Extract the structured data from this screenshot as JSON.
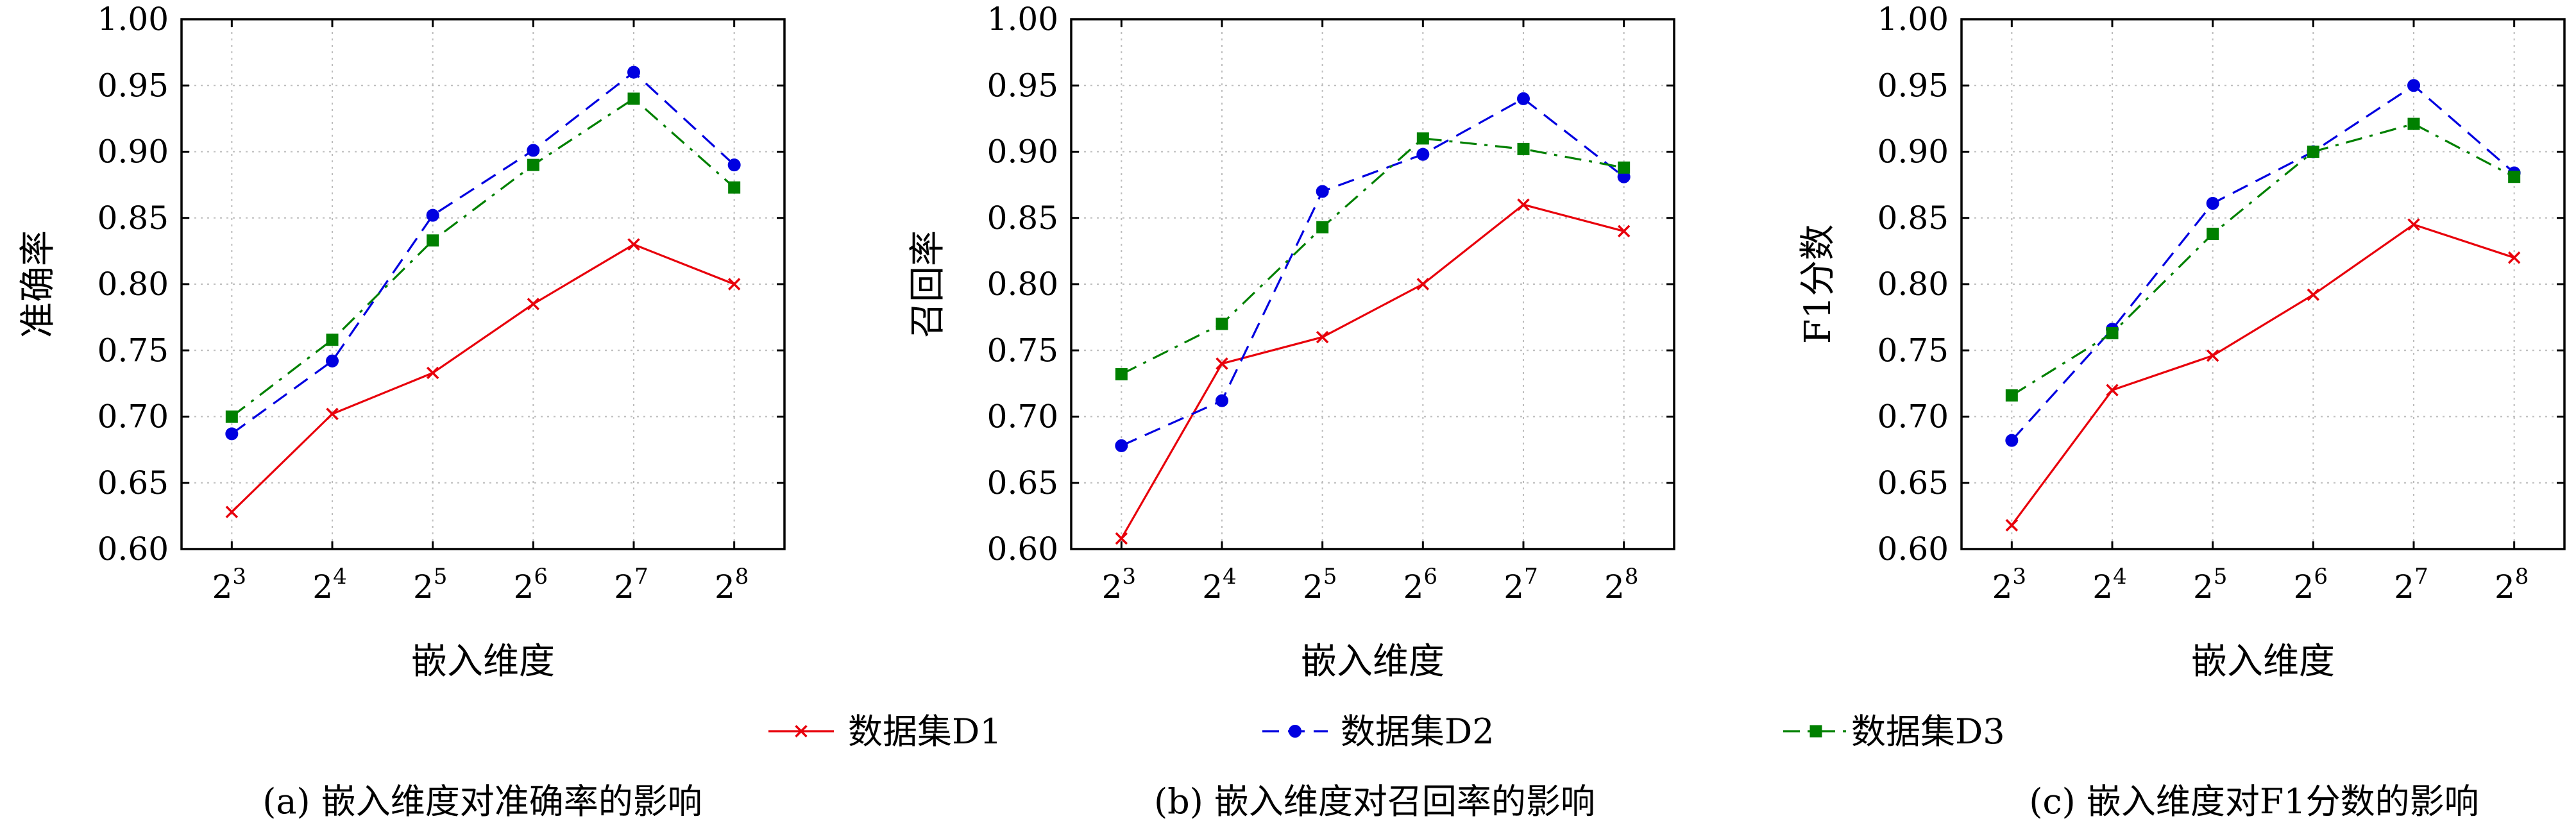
{
  "legend": [
    {
      "name": "数据集D1",
      "color": "#e8000b",
      "marker": "x",
      "dash": "solid"
    },
    {
      "name": "数据集D2",
      "color": "#0000e0",
      "marker": "circle",
      "dash": "dashed"
    },
    {
      "name": "数据集D3",
      "color": "#008000",
      "marker": "square",
      "dash": "dashdot"
    }
  ],
  "chart_data": [
    {
      "type": "line",
      "caption": "(a) 嵌入维度对准确率的影响",
      "xlabel": "嵌入维度",
      "ylabel": "准确率",
      "x": [
        "2^3",
        "2^4",
        "2^5",
        "2^6",
        "2^7",
        "2^8"
      ],
      "x_tick_labels": [
        {
          "base": "2",
          "exp": "3"
        },
        {
          "base": "2",
          "exp": "4"
        },
        {
          "base": "2",
          "exp": "5"
        },
        {
          "base": "2",
          "exp": "6"
        },
        {
          "base": "2",
          "exp": "7"
        },
        {
          "base": "2",
          "exp": "8"
        }
      ],
      "ylim": [
        0.6,
        1.0
      ],
      "y_ticks": [
        "0.60",
        "0.65",
        "0.70",
        "0.75",
        "0.80",
        "0.85",
        "0.90",
        "0.95",
        "1.00"
      ],
      "grid": true,
      "series": [
        {
          "name": "数据集D1",
          "values": [
            0.628,
            0.702,
            0.733,
            0.785,
            0.83,
            0.8
          ]
        },
        {
          "name": "数据集D2",
          "values": [
            0.687,
            0.742,
            0.852,
            0.901,
            0.96,
            0.89
          ]
        },
        {
          "name": "数据集D3",
          "values": [
            0.7,
            0.758,
            0.833,
            0.89,
            0.94,
            0.873
          ]
        }
      ]
    },
    {
      "type": "line",
      "caption": "(b) 嵌入维度对召回率的影响",
      "xlabel": "嵌入维度",
      "ylabel": "召回率",
      "x": [
        "2^3",
        "2^4",
        "2^5",
        "2^6",
        "2^7",
        "2^8"
      ],
      "x_tick_labels": [
        {
          "base": "2",
          "exp": "3"
        },
        {
          "base": "2",
          "exp": "4"
        },
        {
          "base": "2",
          "exp": "5"
        },
        {
          "base": "2",
          "exp": "6"
        },
        {
          "base": "2",
          "exp": "7"
        },
        {
          "base": "2",
          "exp": "8"
        }
      ],
      "ylim": [
        0.6,
        1.0
      ],
      "y_ticks": [
        "0.60",
        "0.65",
        "0.70",
        "0.75",
        "0.80",
        "0.85",
        "0.90",
        "0.95",
        "1.00"
      ],
      "grid": true,
      "series": [
        {
          "name": "数据集D1",
          "values": [
            0.608,
            0.74,
            0.76,
            0.8,
            0.86,
            0.84
          ]
        },
        {
          "name": "数据集D2",
          "values": [
            0.678,
            0.712,
            0.87,
            0.898,
            0.94,
            0.881
          ]
        },
        {
          "name": "数据集D3",
          "values": [
            0.732,
            0.77,
            0.843,
            0.91,
            0.902,
            0.888
          ]
        }
      ]
    },
    {
      "type": "line",
      "caption": "(c) 嵌入维度对F1分数的影响",
      "xlabel": "嵌入维度",
      "ylabel": "F1分数",
      "x": [
        "2^3",
        "2^4",
        "2^5",
        "2^6",
        "2^7",
        "2^8"
      ],
      "x_tick_labels": [
        {
          "base": "2",
          "exp": "3"
        },
        {
          "base": "2",
          "exp": "4"
        },
        {
          "base": "2",
          "exp": "5"
        },
        {
          "base": "2",
          "exp": "6"
        },
        {
          "base": "2",
          "exp": "7"
        },
        {
          "base": "2",
          "exp": "8"
        }
      ],
      "ylim": [
        0.6,
        1.0
      ],
      "y_ticks": [
        "0.60",
        "0.65",
        "0.70",
        "0.75",
        "0.80",
        "0.85",
        "0.90",
        "0.95",
        "1.00"
      ],
      "grid": true,
      "series": [
        {
          "name": "数据集D1",
          "values": [
            0.618,
            0.72,
            0.746,
            0.792,
            0.845,
            0.82
          ]
        },
        {
          "name": "数据集D2",
          "values": [
            0.682,
            0.766,
            0.861,
            0.9,
            0.95,
            0.884
          ]
        },
        {
          "name": "数据集D3",
          "values": [
            0.716,
            0.763,
            0.838,
            0.9,
            0.921,
            0.881
          ]
        }
      ]
    }
  ]
}
